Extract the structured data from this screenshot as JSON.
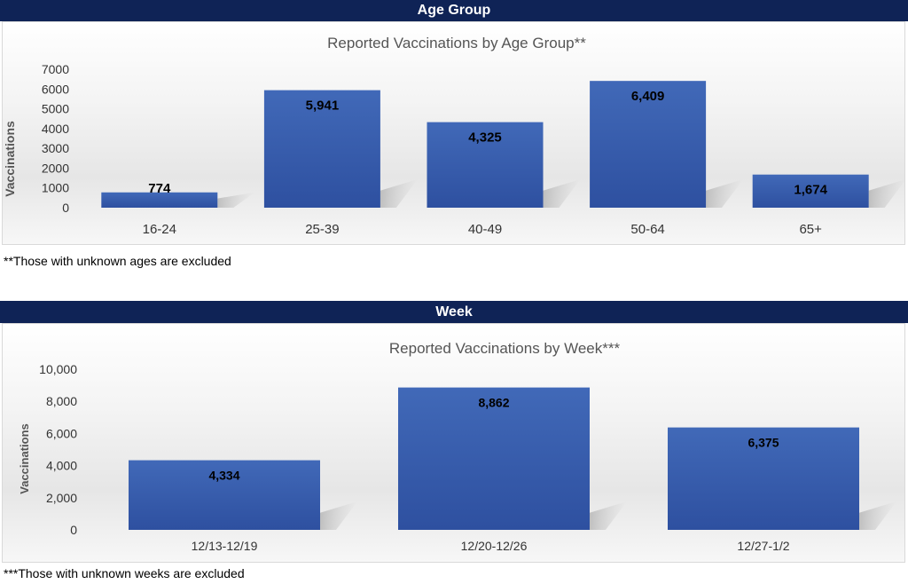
{
  "colors": {
    "header_bg": "#0f2356",
    "bar": "#4169b8",
    "bar_dark": "#2e50a0",
    "text": "#000000",
    "axis_text": "#555555"
  },
  "panels": [
    {
      "header": "Age Group",
      "footnote": "**Those with unknown ages are excluded",
      "chart_data": {
        "type": "bar",
        "title": "Reported Vaccinations by Age Group**",
        "xlabel": "",
        "ylabel": "Vaccinations",
        "categories": [
          "16-24",
          "25-39",
          "40-49",
          "50-64",
          "65+"
        ],
        "values": [
          774,
          5941,
          4325,
          6409,
          1674
        ],
        "data_labels": [
          "774",
          "5,941",
          "4,325",
          "6,409",
          "1,674"
        ],
        "ylim": [
          0,
          7000
        ],
        "yticks": [
          0,
          1000,
          2000,
          3000,
          4000,
          5000,
          6000,
          7000
        ],
        "ytick_labels": [
          "0",
          "1000",
          "2000",
          "3000",
          "4000",
          "5000",
          "6000",
          "7000"
        ],
        "grid": false,
        "legend": "none"
      }
    },
    {
      "header": "Week",
      "footnote": "***Those with unknown weeks are excluded",
      "chart_data": {
        "type": "bar",
        "title": "Reported Vaccinations by Week***",
        "xlabel": "",
        "ylabel": "Vaccinations",
        "categories": [
          "12/13-12/19",
          "12/20-12/26",
          "12/27-1/2"
        ],
        "values": [
          4334,
          8862,
          6375
        ],
        "data_labels": [
          "4,334",
          "8,862",
          "6,375"
        ],
        "ylim": [
          0,
          10000
        ],
        "yticks": [
          0,
          2000,
          4000,
          6000,
          8000,
          10000
        ],
        "ytick_labels": [
          "0",
          "2,000",
          "4,000",
          "6,000",
          "8,000",
          "10,000"
        ],
        "grid": false,
        "legend": "none"
      }
    }
  ]
}
